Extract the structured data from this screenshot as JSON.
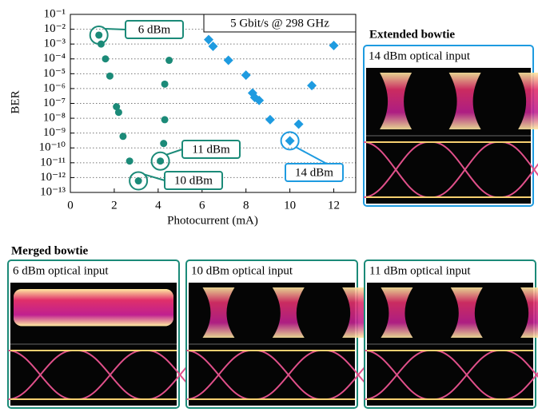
{
  "chart_data": {
    "type": "scatter",
    "title": "5 Gbit/s @ 298 GHz",
    "x_label": "Photocurrent (mA)",
    "y_label": "BER",
    "log_y": true,
    "grid": true,
    "xlim": [
      0,
      13
    ],
    "xticks": [
      0,
      2,
      4,
      6,
      8,
      10,
      12
    ],
    "ylim": [
      1e-13,
      0.1
    ],
    "yticks": [
      {
        "value": 0.1,
        "label": "10⁻¹"
      },
      {
        "value": 0.01,
        "label": "10⁻²"
      },
      {
        "value": 0.001,
        "label": "10⁻³"
      },
      {
        "value": 0.0001,
        "label": "10⁻⁴"
      },
      {
        "value": 1e-05,
        "label": "10⁻⁵"
      },
      {
        "value": 1e-06,
        "label": "10⁻⁶"
      },
      {
        "value": 1e-07,
        "label": "10⁻⁷"
      },
      {
        "value": 1e-08,
        "label": "10⁻⁸"
      },
      {
        "value": 1e-09,
        "label": "10⁻⁹"
      },
      {
        "value": 1e-10,
        "label": "10⁻¹⁰"
      },
      {
        "value": 1e-11,
        "label": "10⁻¹¹"
      },
      {
        "value": 1e-12,
        "label": "10⁻¹²"
      },
      {
        "value": 1e-13,
        "label": "10⁻¹³"
      }
    ],
    "series": [
      {
        "color": "#1b8a78",
        "marker": "circle",
        "x": [
          1.3,
          1.4,
          1.6,
          4.5,
          1.8,
          4.3,
          2.1,
          2.2,
          4.3,
          2.4,
          4.25,
          2.7,
          4.1,
          3.1
        ],
        "values": [
          0.004,
          0.001,
          0.0001,
          8e-05,
          7e-06,
          2e-06,
          6e-08,
          2.5e-08,
          8e-09,
          6e-10,
          2e-10,
          1.3e-11,
          1.3e-11,
          6e-13
        ]
      },
      {
        "color": "#1e9be0",
        "marker": "diamond",
        "x": [
          6.3,
          6.5,
          7.2,
          8.0,
          8.3,
          8.4,
          8.6,
          9.1,
          10.4,
          11.0,
          12.0,
          10.0
        ],
        "values": [
          0.002,
          0.0007,
          8e-05,
          8e-06,
          5e-07,
          2.5e-07,
          1.6e-07,
          8e-09,
          4e-09,
          1.6e-06,
          0.0008,
          3e-10
        ]
      }
    ],
    "annotations": [
      "6 dBm",
      "11 dBm",
      "10 dBm",
      "14 dBm"
    ]
  },
  "panels": {
    "extended": {
      "title": "Extended bowtie",
      "label": "14 dBm optical input"
    },
    "merged": {
      "title": "Merged bowtie",
      "labels": [
        "6 dBm optical input",
        "10 dBm optical input",
        "11 dBm optical input"
      ]
    }
  }
}
